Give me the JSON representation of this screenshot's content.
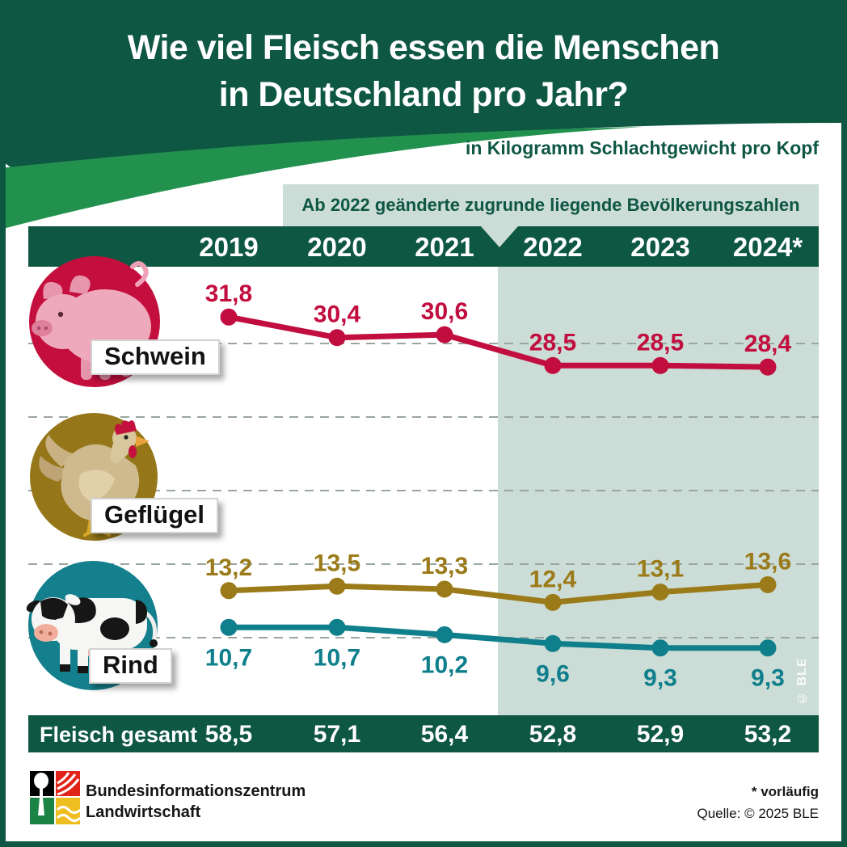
{
  "header": {
    "title_line1": "Wie viel Fleisch essen die Menschen",
    "title_line2": "in Deutschland pro Jahr?",
    "subtitle": "in Kilogramm Schlachtgewicht pro Kopf"
  },
  "note_banner": "Ab 2022 geänderte zugrunde liegende Bevölkerungszahlen",
  "years": [
    "2019",
    "2020",
    "2021",
    "2022",
    "2023",
    "2024*"
  ],
  "row_labels": [
    "Schwein",
    "Geflügel",
    "Rind"
  ],
  "chart_data": {
    "type": "line",
    "title": "Wie viel Fleisch essen die Menschen in Deutschland pro Jahr?",
    "ylabel": "in Kilogramm Schlachtgewicht pro Kopf",
    "categories": [
      "2019",
      "2020",
      "2021",
      "2022",
      "2023",
      "2024*"
    ],
    "series": [
      {
        "name": "Schwein",
        "color": "#c20e3f",
        "values": [
          31.8,
          30.4,
          30.6,
          28.5,
          28.5,
          28.4
        ],
        "labels": [
          "31,8",
          "30,4",
          "30,6",
          "28,5",
          "28,5",
          "28,4"
        ],
        "label_position": "above"
      },
      {
        "name": "Geflügel",
        "color": "#9b7b19",
        "values": [
          13.2,
          13.5,
          13.3,
          12.4,
          13.1,
          13.6
        ],
        "labels": [
          "13,2",
          "13,5",
          "13,3",
          "12,4",
          "13,1",
          "13,6"
        ],
        "label_position": "above"
      },
      {
        "name": "Rind",
        "color": "#0f7f8c",
        "values": [
          10.7,
          10.7,
          10.2,
          9.6,
          9.3,
          9.3
        ],
        "labels": [
          "10,7",
          "10,7",
          "10,2",
          "9,6",
          "9,3",
          "9,3"
        ],
        "label_position": "below"
      }
    ],
    "gridlines": [
      30,
      25,
      20,
      15,
      10
    ],
    "grid_on": true,
    "highlight_region": {
      "from_category": "2022",
      "note": "Ab 2022 geänderte zugrunde liegende Bevölkerungszahlen"
    },
    "totals": {
      "label": "Fleisch gesamt",
      "values": [
        "58,5",
        "57,1",
        "56,4",
        "52,8",
        "52,9",
        "53,2"
      ]
    }
  },
  "watermark": "© BLE",
  "footer": {
    "org_line1": "Bundesinformationszentrum",
    "org_line2": "Landwirtschaft",
    "footnote": "* vorläufig",
    "source": "Quelle: © 2025 BLE"
  },
  "colors": {
    "dark_green": "#0e5743",
    "swoosh_green": "#23914e",
    "sage": "#ccdcd6",
    "schwein": "#c20e3f",
    "gefluegel": "#9b7b19",
    "rind": "#0f7f8c"
  }
}
